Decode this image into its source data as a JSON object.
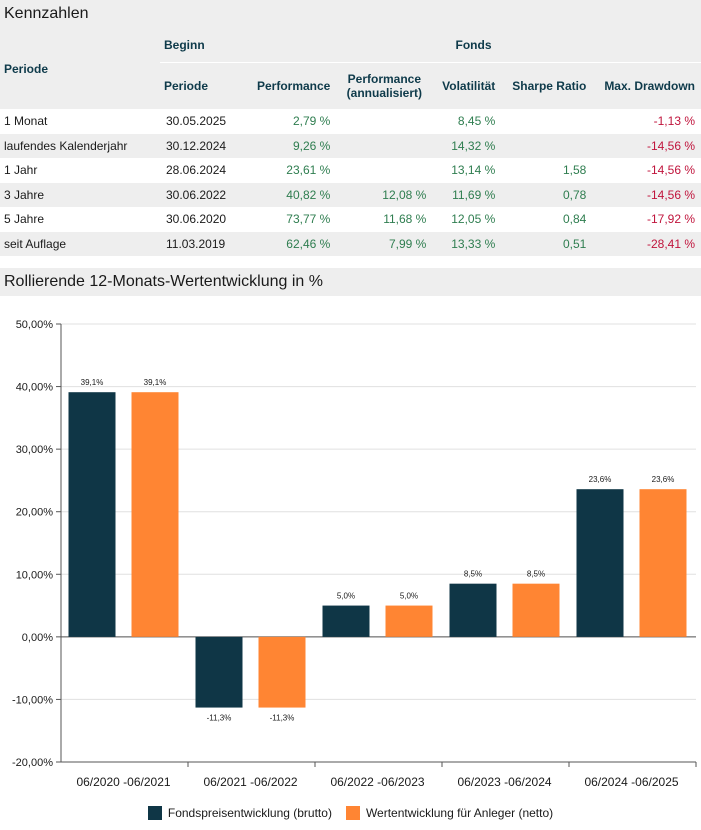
{
  "kennzahlen": {
    "title": "Kennzahlen",
    "header": {
      "periode": "Periode",
      "beginn": "Beginn",
      "beginn_sub": "Periode",
      "fonds": "Fonds",
      "performance": "Performance",
      "performance_ann": "Performance (annualisiert)",
      "volatilitaet": "Volatilität",
      "sharpe": "Sharpe Ratio",
      "drawdown": "Max. Drawdown"
    },
    "rows": [
      {
        "periode": "1 Monat",
        "beginn": "30.05.2025",
        "performance": "2,79 %",
        "performance_ann": "",
        "volatilitaet": "8,45 %",
        "sharpe": "",
        "drawdown": "-1,13 %"
      },
      {
        "periode": "laufendes Kalenderjahr",
        "beginn": "30.12.2024",
        "performance": "9,26 %",
        "performance_ann": "",
        "volatilitaet": "14,32 %",
        "sharpe": "",
        "drawdown": "-14,56 %"
      },
      {
        "periode": "1 Jahr",
        "beginn": "28.06.2024",
        "performance": "23,61 %",
        "performance_ann": "",
        "volatilitaet": "13,14 %",
        "sharpe": "1,58",
        "drawdown": "-14,56 %"
      },
      {
        "periode": "3 Jahre",
        "beginn": "30.06.2022",
        "performance": "40,82 %",
        "performance_ann": "12,08 %",
        "volatilitaet": "11,69 %",
        "sharpe": "0,78",
        "drawdown": "-14,56 %"
      },
      {
        "periode": "5 Jahre",
        "beginn": "30.06.2020",
        "performance": "73,77 %",
        "performance_ann": "11,68 %",
        "volatilitaet": "12,05 %",
        "sharpe": "0,84",
        "drawdown": "-17,92 %"
      },
      {
        "periode": "seit Auflage",
        "beginn": "11.03.2019",
        "performance": "62,46 %",
        "performance_ann": "7,99 %",
        "volatilitaet": "13,33 %",
        "sharpe": "0,51",
        "drawdown": "-28,41 %"
      }
    ]
  },
  "colors": {
    "positive": "#2e7d4f",
    "negative": "#c0143c",
    "series_brutto": "#0f3646",
    "series_netto": "#ff8533"
  },
  "chart_data": {
    "type": "bar",
    "title": "Rollierende 12-Monats-Wertentwicklung in %",
    "categories": [
      "06/2020 -06/2021",
      "06/2021 -06/2022",
      "06/2022 -06/2023",
      "06/2023 -06/2024",
      "06/2024 -06/2025"
    ],
    "series": [
      {
        "name": "Fondspreisentwicklung (brutto)",
        "values": [
          39.1,
          -11.3,
          5.0,
          8.5,
          23.6
        ],
        "labels": [
          "39,1%",
          "-11,3%",
          "5,0%",
          "8,5%",
          "23,6%"
        ],
        "color": "#0f3646"
      },
      {
        "name": "Wertentwicklung für Anleger (netto)",
        "values": [
          39.1,
          -11.3,
          5.0,
          8.5,
          23.6
        ],
        "labels": [
          "39,1%",
          "-11,3%",
          "5,0%",
          "8,5%",
          "23,6%"
        ],
        "color": "#ff8533"
      }
    ],
    "ylim": [
      -20,
      50
    ],
    "yticks": [
      50,
      40,
      30,
      20,
      10,
      0,
      -10,
      -20
    ],
    "ytick_labels": [
      "50,00%",
      "40,00%",
      "30,00%",
      "20,00%",
      "10,00%",
      "0,00%",
      "-10,00%",
      "-20,00%"
    ],
    "grid": true,
    "legend_position": "bottom"
  }
}
